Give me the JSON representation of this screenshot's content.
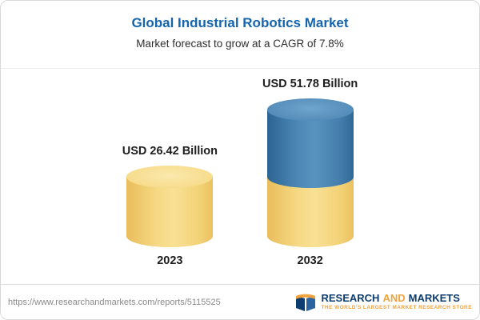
{
  "header": {
    "title": "Global Industrial Robotics Market",
    "subtitle": "Market forecast to grow at a CAGR of 7.8%"
  },
  "chart_data": {
    "type": "bar",
    "subtype": "3d-cylinder",
    "title": "Global Industrial Robotics Market",
    "subtitle": "Market forecast to grow at a CAGR of 7.8%",
    "cagr_percent": 7.8,
    "unit": "USD Billion",
    "categories": [
      "2023",
      "2032"
    ],
    "values": [
      26.42,
      51.78
    ],
    "value_labels": [
      "USD 26.42 Billion",
      "USD 51.78 Billion"
    ],
    "ylim": [
      0,
      51.78
    ],
    "grid": false,
    "legend": "none",
    "encoding_note": "2032 cylinder drawn as yellow base equal to 2023 value with blue growth segment on top"
  },
  "colors": {
    "title_blue": "#1565ad",
    "bar_yellow": "#f2cf72",
    "bar_blue": "#4d87b5",
    "logo_navy": "#0d3d70",
    "logo_orange": "#f0a23d"
  },
  "footer": {
    "url": "https://www.researchandmarkets.com/reports/5115525",
    "logo": {
      "word1": "RESEARCH",
      "word2": "AND",
      "word3": "MARKETS",
      "tagline": "THE WORLD'S LARGEST MARKET RESEARCH STORE"
    }
  }
}
